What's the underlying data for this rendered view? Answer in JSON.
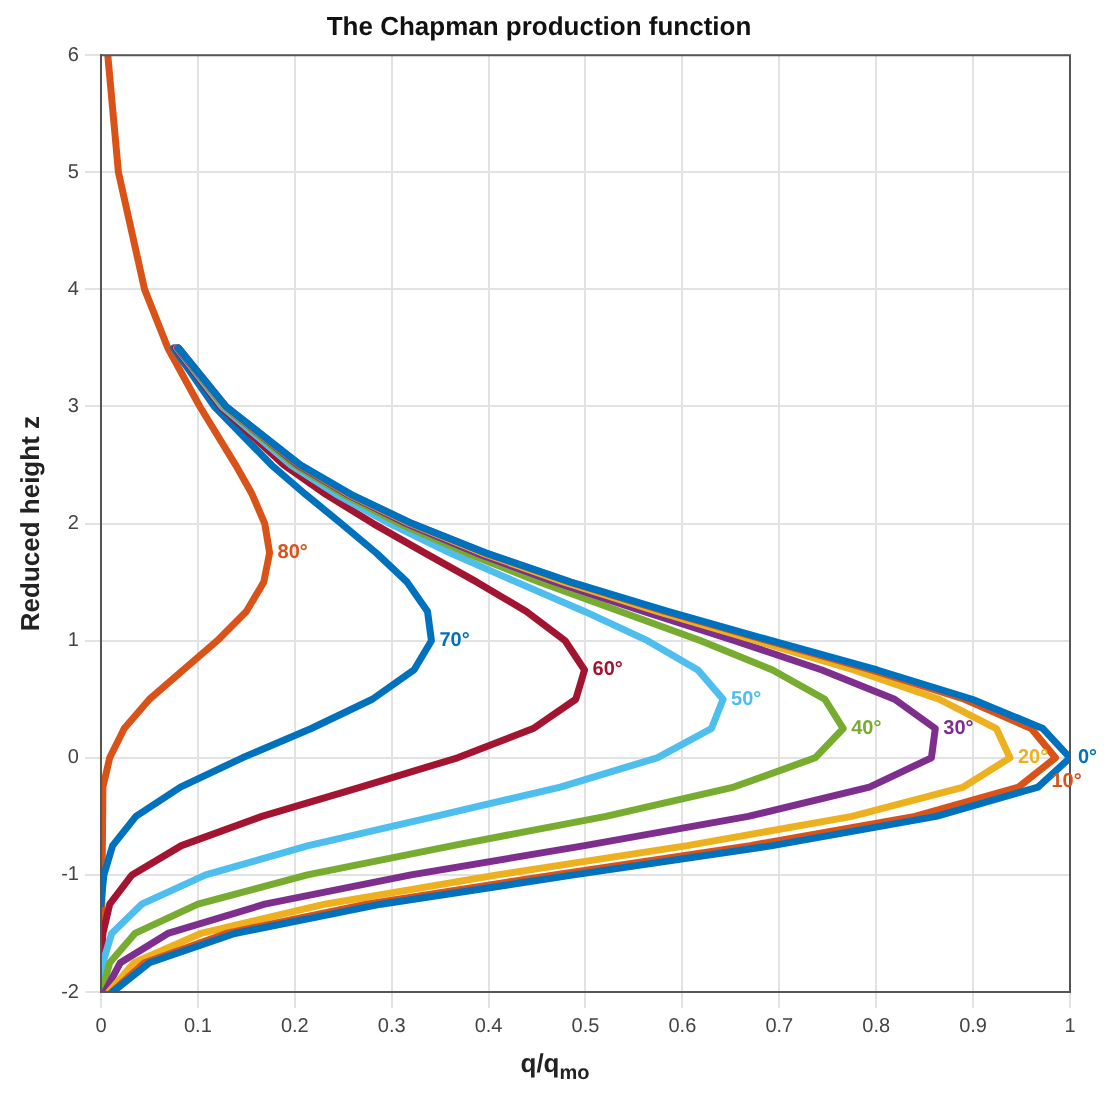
{
  "chart_data": {
    "type": "line",
    "title": "The Chapman production function",
    "xlabel": "q/q$_{mo}$",
    "ylabel": "Reduced height z",
    "xlim": [
      0,
      1
    ],
    "xticks": [
      0,
      0.1,
      0.2,
      0.3,
      0.4,
      0.5,
      0.6,
      0.7,
      0.8,
      0.9,
      1
    ],
    "ylim": [
      -2,
      6
    ],
    "yticks": [
      -2,
      -1,
      0,
      1,
      2,
      3,
      4,
      5,
      6
    ],
    "grid": true,
    "legend": false,
    "marker": "none",
    "series": [
      {
        "name": "0°",
        "color": "#0072bd",
        "x": [
          0.012,
          0.05,
          0.138,
          0.289,
          0.488,
          0.693,
          0.862,
          0.967,
          1,
          0.972,
          0.899,
          0.801,
          0.692,
          0.585,
          0.485,
          0.397,
          0.321,
          0.258,
          0.206,
          0.129,
          0.08
        ],
        "values": [
          -2,
          -1.75,
          -1.5,
          -1.25,
          -1,
          -0.75,
          -0.5,
          -0.25,
          0,
          0.25,
          0.5,
          0.75,
          1,
          1.25,
          1.5,
          1.75,
          2,
          2.25,
          2.5,
          3,
          3.5
        ]
      },
      {
        "name": "10°",
        "color": "#d95319",
        "x": [
          0.011,
          0.045,
          0.129,
          0.274,
          0.468,
          0.67,
          0.84,
          0.947,
          0.985,
          0.96,
          0.891,
          0.795,
          0.688,
          0.582,
          0.484,
          0.396,
          0.321,
          0.257,
          0.205,
          0.129,
          0.08
        ],
        "values": [
          -2,
          -1.75,
          -1.5,
          -1.25,
          -1,
          -0.75,
          -0.5,
          -0.25,
          0,
          0.25,
          0.5,
          0.75,
          1,
          1.25,
          1.5,
          1.75,
          2,
          2.25,
          2.5,
          3,
          3.5
        ]
      },
      {
        "name": "20°",
        "color": "#edb120",
        "x": [
          0.008,
          0.034,
          0.103,
          0.231,
          0.409,
          0.605,
          0.775,
          0.89,
          0.938,
          0.924,
          0.865,
          0.777,
          0.676,
          0.574,
          0.478,
          0.393,
          0.319,
          0.256,
          0.205,
          0.128,
          0.08
        ],
        "values": [
          -2,
          -1.75,
          -1.5,
          -1.25,
          -1,
          -0.75,
          -0.5,
          -0.25,
          0,
          0.25,
          0.5,
          0.75,
          1,
          1.25,
          1.5,
          1.75,
          2,
          2.25,
          2.5,
          3,
          3.5
        ]
      },
      {
        "name": "30°",
        "color": "#7e2f8e",
        "x": [
          0.004,
          0.02,
          0.069,
          0.169,
          0.32,
          0.499,
          0.668,
          0.793,
          0.857,
          0.861,
          0.819,
          0.744,
          0.654,
          0.56,
          0.469,
          0.387,
          0.315,
          0.254,
          0.203,
          0.128,
          0.079
        ],
        "values": [
          -2,
          -1.75,
          -1.5,
          -1.25,
          -1,
          -0.75,
          -0.5,
          -0.25,
          0,
          0.25,
          0.5,
          0.75,
          1,
          1.25,
          1.5,
          1.75,
          2,
          2.25,
          2.5,
          3,
          3.5
        ]
      },
      {
        "name": "40°",
        "color": "#77ac30",
        "x": [
          0.001,
          0.009,
          0.035,
          0.1,
          0.213,
          0.363,
          0.521,
          0.653,
          0.737,
          0.766,
          0.747,
          0.693,
          0.619,
          0.536,
          0.453,
          0.377,
          0.308,
          0.25,
          0.2,
          0.127,
          0.079
        ],
        "values": [
          -2,
          -1.75,
          -1.5,
          -1.25,
          -1,
          -0.75,
          -0.5,
          -0.25,
          0,
          0.25,
          0.5,
          0.75,
          1,
          1.25,
          1.5,
          1.75,
          2,
          2.25,
          2.5,
          3,
          3.5
        ]
      },
      {
        "name": "50°",
        "color": "#4dbeee",
        "x": [
          0,
          0.002,
          0.011,
          0.042,
          0.108,
          0.214,
          0.345,
          0.474,
          0.574,
          0.63,
          0.642,
          0.616,
          0.564,
          0.499,
          0.429,
          0.36,
          0.298,
          0.243,
          0.196,
          0.125,
          0.078
        ],
        "values": [
          -2,
          -1.75,
          -1.5,
          -1.25,
          -1,
          -0.75,
          -0.5,
          -0.25,
          0,
          0.25,
          0.5,
          0.75,
          1,
          1.25,
          1.5,
          1.75,
          2,
          2.25,
          2.5,
          3,
          3.5
        ]
      },
      {
        "name": "60°",
        "color": "#a2142f",
        "x": [
          0,
          0.002,
          0.009,
          0.032,
          0.083,
          0.166,
          0.268,
          0.368,
          0.446,
          0.49,
          0.499,
          0.479,
          0.439,
          0.388,
          0.334,
          0.281,
          0.232,
          0.189,
          0.123,
          0.077
        ],
        "values": [
          -1.75,
          -1.5,
          -1.25,
          -1,
          -0.75,
          -0.5,
          -0.25,
          0,
          0.25,
          0.5,
          0.75,
          1,
          1.25,
          1.5,
          1.75,
          2,
          2.25,
          2.5,
          3,
          3.5
        ]
      },
      {
        "name": "70°",
        "color": "#0072bd",
        "x": [
          0,
          0.003,
          0.012,
          0.036,
          0.082,
          0.146,
          0.217,
          0.28,
          0.323,
          0.341,
          0.337,
          0.316,
          0.284,
          0.248,
          0.211,
          0.176,
          0.117,
          0.075
        ],
        "values": [
          -1.25,
          -1,
          -0.75,
          -0.5,
          -0.25,
          0,
          0.25,
          0.5,
          0.75,
          1,
          1.25,
          1.5,
          1.75,
          2,
          2.25,
          2.5,
          3,
          3.5
        ]
      },
      {
        "name": "80°",
        "color": "#d95319",
        "x": [
          0,
          0.002,
          0.009,
          0.024,
          0.05,
          0.085,
          0.12,
          0.15,
          0.168,
          0.174,
          0.169,
          0.156,
          0.139,
          0.102,
          0.069,
          0.045,
          0.018,
          0.007
        ],
        "values": [
          -2,
          -0.25,
          0,
          0.25,
          0.5,
          0.75,
          1,
          1.25,
          1.5,
          1.75,
          2,
          2.25,
          2.5,
          3,
          3.5,
          4,
          5,
          6
        ]
      }
    ]
  }
}
